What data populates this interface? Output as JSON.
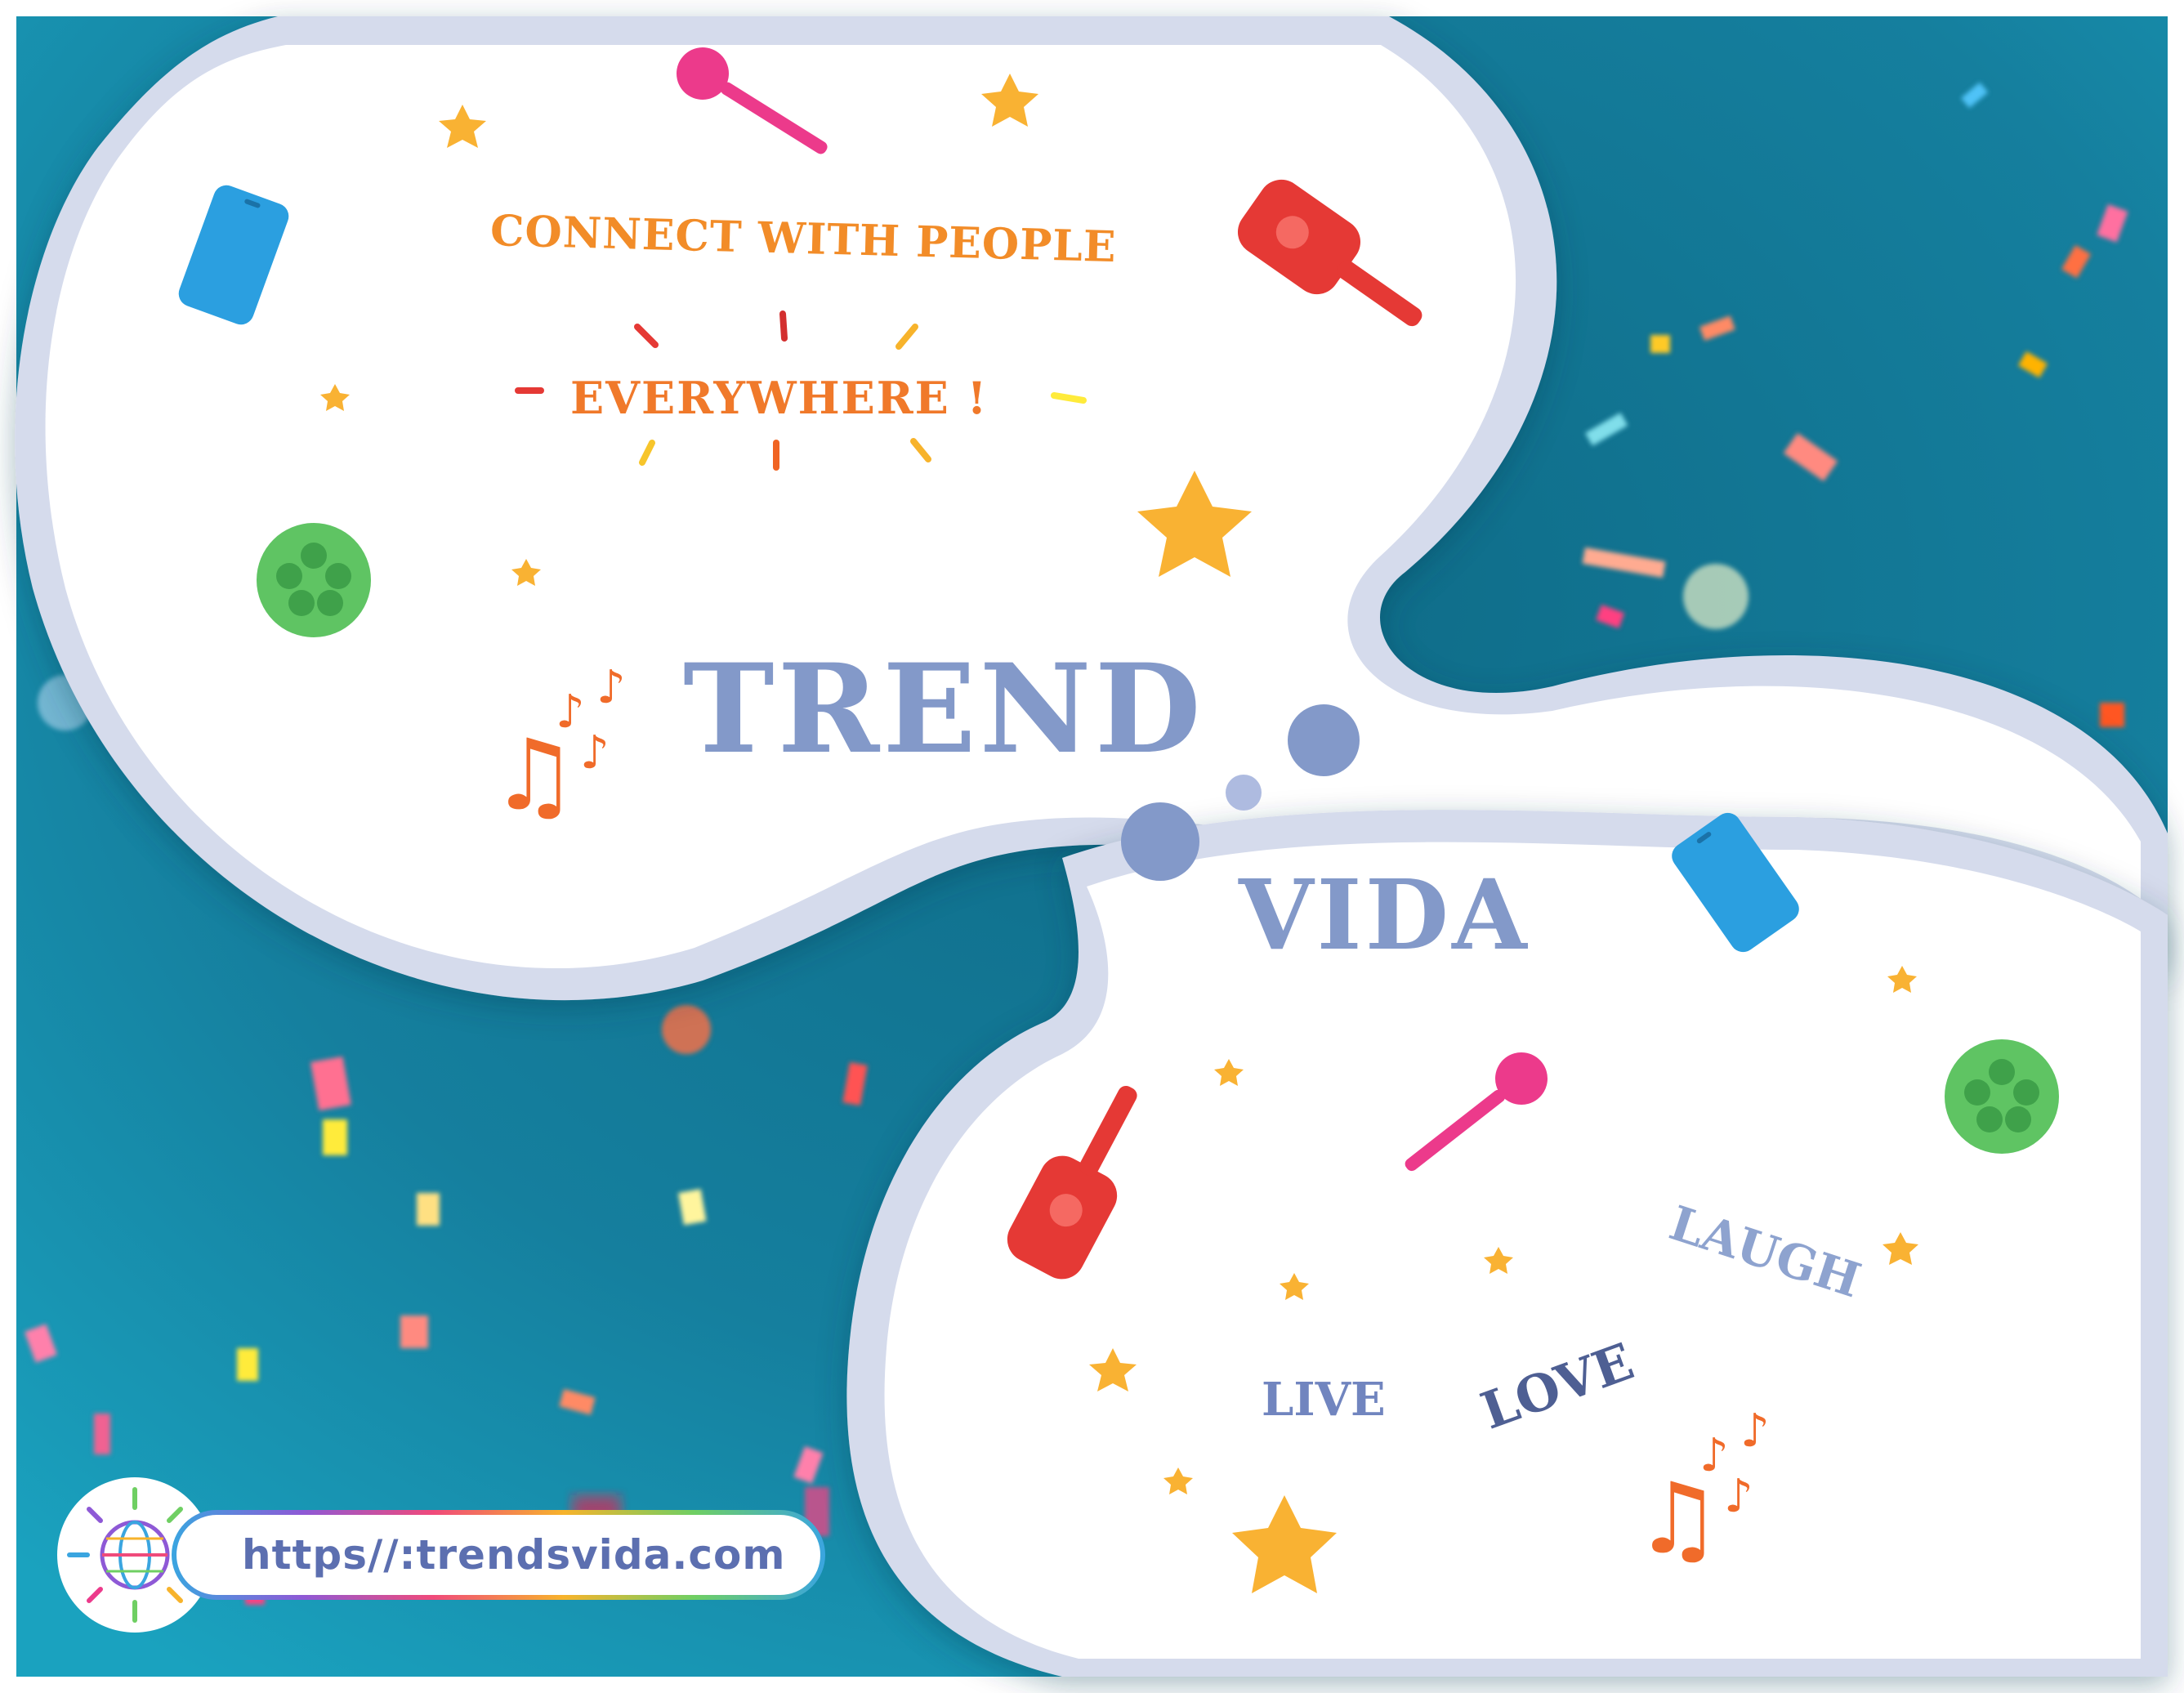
{
  "headline": {
    "connect": "CONNECT WITH PEOPLE",
    "everywhere": "EVERYWHERE !"
  },
  "brand": {
    "trend": "TREND",
    "vida": "VIDA"
  },
  "words": {
    "laugh": "LAUGH",
    "love": "LOVE",
    "live": "LIVE"
  },
  "footer": {
    "url": "https//:trendsvida.com"
  },
  "colors": {
    "background_teal": "#1a7f9c",
    "bubble": "#ffffff",
    "bubble_rim": "#d5dbec",
    "accent_blue": "#8399c9",
    "accent_orange": "#f28c28",
    "star": "#f9b233"
  },
  "icons": [
    "microphone-icon",
    "smartphone-icon",
    "bottle-icon",
    "ball-icon",
    "star-icon",
    "music-notes-icon",
    "globe-icon"
  ]
}
